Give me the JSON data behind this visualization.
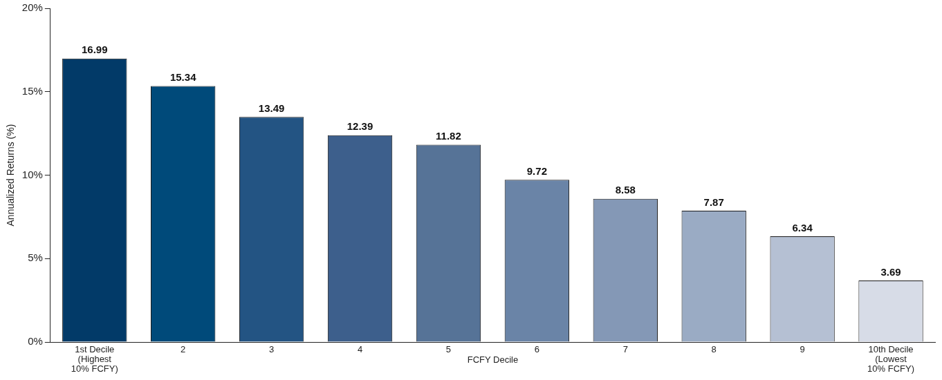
{
  "chart_data": {
    "type": "bar",
    "xlabel": "FCFY Decile",
    "ylabel": "Annualized Returns (%)",
    "categories": [
      "1st Decile (Highest 10% FCFY)",
      "2",
      "3",
      "4",
      "5",
      "6",
      "7",
      "8",
      "9",
      "10th Decile (Lowest 10% FCFY)"
    ],
    "values": [
      16.99,
      15.34,
      13.49,
      12.39,
      11.82,
      9.72,
      8.58,
      7.87,
      6.34,
      3.69
    ],
    "colors": [
      "#023a68",
      "#004a7a",
      "#235483",
      "#3d5f8c",
      "#567397",
      "#6a84a7",
      "#8498b6",
      "#9aabc4",
      "#b5c0d3",
      "#d7dce7"
    ],
    "ylim": [
      0,
      20
    ],
    "yticks": [
      {
        "value": 0,
        "label": "0%"
      },
      {
        "value": 5,
        "label": "5%"
      },
      {
        "value": 10,
        "label": "10%"
      },
      {
        "value": 15,
        "label": "15%"
      },
      {
        "value": 20,
        "label": "20%"
      }
    ],
    "grid": false,
    "legend": false,
    "data_labels": true
  }
}
